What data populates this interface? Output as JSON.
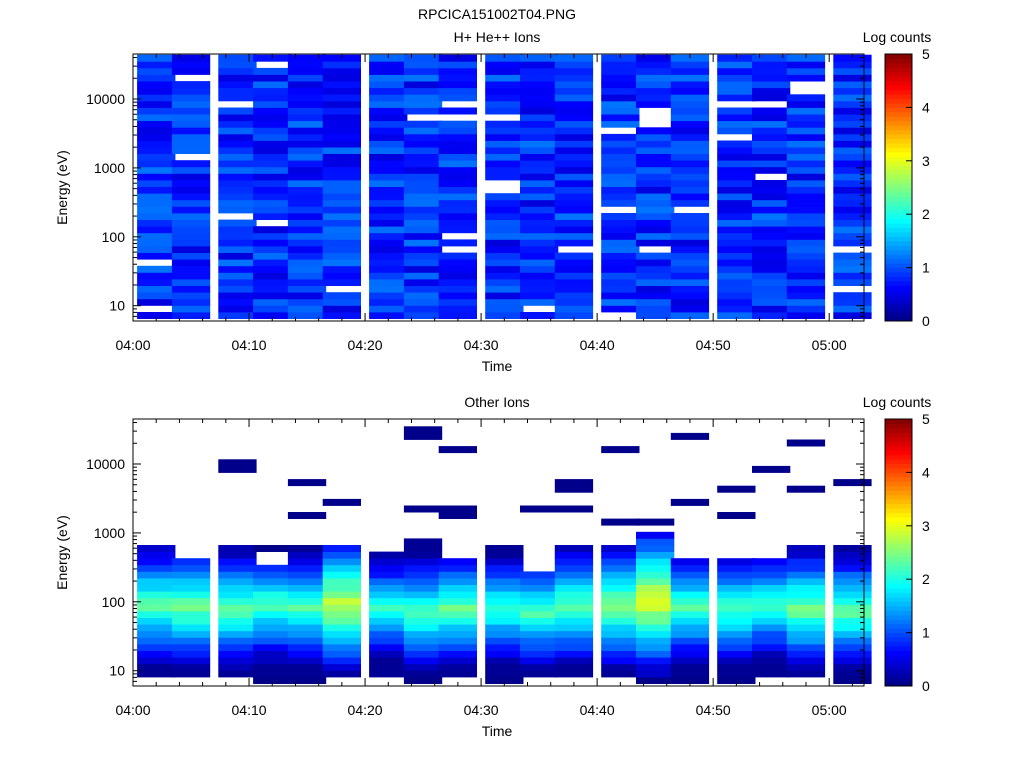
{
  "figure_title": "RPCICA151002T04.PNG",
  "colors": {
    "background": "#ffffff",
    "axis": "#000000",
    "colormap": "jet"
  },
  "chart_data": [
    {
      "type": "heatmap",
      "title": "H+ He++ Ions",
      "xlabel": "Time",
      "ylabel": "Energy (eV)",
      "y_scale": "log",
      "xlim": [
        "04:00",
        "05:03"
      ],
      "ylim": [
        6,
        45000
      ],
      "x_ticks": [
        "04:00",
        "04:10",
        "04:20",
        "04:30",
        "04:40",
        "04:50",
        "05:00"
      ],
      "y_ticks": [
        "10",
        "100",
        "1000",
        "10000"
      ],
      "time_bins": [
        "04:02",
        "04:05",
        "04:09",
        "04:12",
        "04:15",
        "04:18",
        "04:22",
        "04:25",
        "04:28",
        "04:32",
        "04:35",
        "04:38",
        "04:42",
        "04:45",
        "04:48",
        "04:52",
        "04:55",
        "04:58",
        "05:02"
      ],
      "dominant_log_counts_range": [
        0.3,
        1.3
      ],
      "empty_bins_note": "white gaps indicate zero counts",
      "colorbar": {
        "label": "Log counts",
        "min": 0,
        "max": 5,
        "ticks": [
          "0",
          "1",
          "2",
          "3",
          "4",
          "5"
        ]
      },
      "grid": false
    },
    {
      "type": "heatmap",
      "title": "Other Ions",
      "xlabel": "Time",
      "ylabel": "Energy (eV)",
      "y_scale": "log",
      "xlim": [
        "04:00",
        "05:03"
      ],
      "ylim": [
        6,
        45000
      ],
      "x_ticks": [
        "04:00",
        "04:10",
        "04:20",
        "04:30",
        "04:40",
        "04:50",
        "05:00"
      ],
      "y_ticks": [
        "10",
        "100",
        "1000",
        "10000"
      ],
      "time_bins": [
        "04:02",
        "04:05",
        "04:09",
        "04:12",
        "04:15",
        "04:18",
        "04:22",
        "04:25",
        "04:28",
        "04:32",
        "04:35",
        "04:38",
        "04:42",
        "04:45",
        "04:48",
        "04:52",
        "04:55",
        "04:58",
        "05:02"
      ],
      "peak_energy_eV": [
        90,
        85,
        80,
        90,
        80,
        95,
        80,
        70,
        80,
        80,
        70,
        85,
        90,
        110,
        85,
        80,
        90,
        80,
        75
      ],
      "peak_log_counts": [
        2.4,
        2.5,
        2.4,
        2.3,
        2.3,
        2.9,
        2.1,
        2.3,
        2.4,
        2.2,
        2.3,
        2.4,
        2.6,
        3.1,
        2.3,
        2.3,
        2.2,
        2.5,
        2.4
      ],
      "upper_edge_eV": [
        650,
        450,
        600,
        350,
        600,
        600,
        550,
        800,
        400,
        650,
        300,
        600,
        650,
        1100,
        400,
        400,
        400,
        700,
        650
      ],
      "colorbar": {
        "label": "Log counts",
        "min": 0,
        "max": 5,
        "ticks": [
          "0",
          "1",
          "2",
          "3",
          "4",
          "5"
        ]
      },
      "grid": false
    }
  ]
}
